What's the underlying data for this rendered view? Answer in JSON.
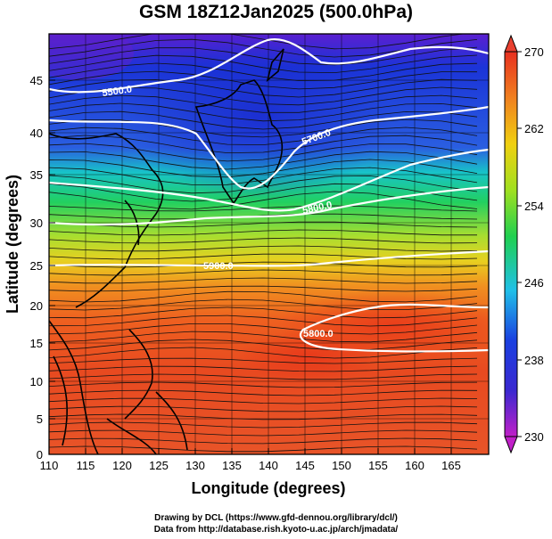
{
  "title": "GSM 18Z12Jan2025 (500.0hPa)",
  "x_axis": {
    "label": "Longitude (degrees)",
    "range": [
      110,
      170
    ],
    "ticks": [
      "110",
      "115",
      "120",
      "125",
      "130",
      "135",
      "140",
      "145",
      "150",
      "155",
      "160",
      "165"
    ]
  },
  "y_axis": {
    "label": "Latitude (degrees)",
    "range": [
      0,
      50
    ],
    "ticks": [
      "0",
      "5",
      "10",
      "15",
      "20",
      "25",
      "30",
      "35",
      "40",
      "45"
    ]
  },
  "colorbar": {
    "range": [
      230,
      270
    ],
    "ticks": [
      "230",
      "238",
      "246",
      "254",
      "262",
      "270"
    ]
  },
  "contours": [
    {
      "label": "5500.0"
    },
    {
      "label": "5700.0"
    },
    {
      "label": "5800.0"
    },
    {
      "label": "5900.0"
    },
    {
      "label": "5800.0"
    }
  ],
  "credits": [
    "Drawing by DCL (https://www.gfd-dennou.org/library/dcl/)",
    "Data from http://database.rish.kyoto-u.ac.jp/arch/jmadata/"
  ]
}
